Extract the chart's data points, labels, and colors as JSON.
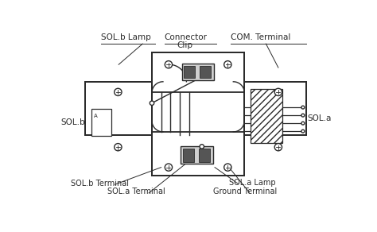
{
  "bg_color": "#ffffff",
  "line_color": "#2a2a2a",
  "figsize": [
    4.74,
    2.92
  ],
  "dpi": 100,
  "labels": {
    "sol_b_lamp": "SOL.b Lamp",
    "connector": "Connector",
    "clip": "Clip",
    "com_terminal": "COM. Terminal",
    "sol_b": "SOL.b",
    "sol_a": "SOL.a",
    "sol_b_terminal": "SOL.b Terminal",
    "sol_a_terminal": "SOL.a Terminal",
    "sol_a_lamp": "SOL.a Lamp",
    "ground_terminal": "Ground Terminal"
  }
}
